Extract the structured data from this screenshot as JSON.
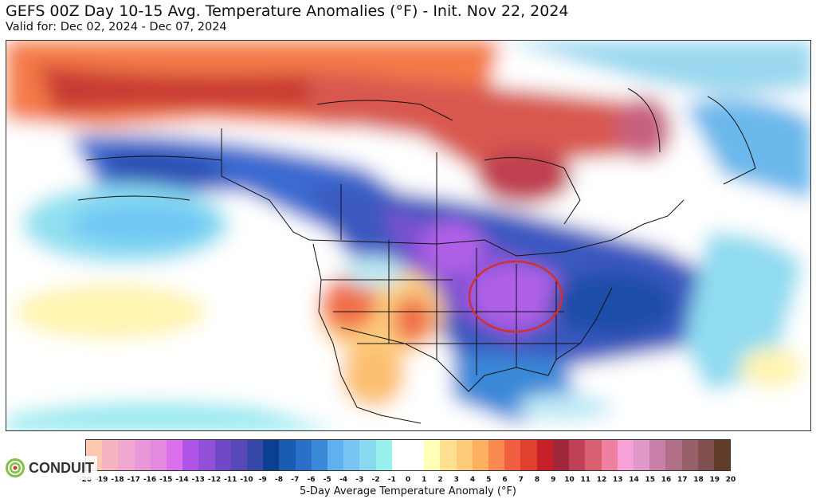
{
  "header": {
    "title": "GEFS 00Z Day 10-15 Avg. Temperature Anomalies (°F) - Init. Nov 22, 2024",
    "subtitle": "Valid for: Dec 02, 2024 - Dec 07, 2024"
  },
  "colorbar": {
    "label": "5-Day Average Temperature Anomaly (°F)",
    "ticks": [
      "-20",
      "-19",
      "-18",
      "-17",
      "-16",
      "-15",
      "-14",
      "-13",
      "-12",
      "-11",
      "-10",
      "-9",
      "-8",
      "-7",
      "-6",
      "-5",
      "-4",
      "-3",
      "-2",
      "-1",
      "0",
      "1",
      "2",
      "3",
      "4",
      "5",
      "6",
      "7",
      "8",
      "9",
      "10",
      "11",
      "12",
      "13",
      "14",
      "15",
      "16",
      "17",
      "18",
      "19",
      "20"
    ],
    "colors": [
      "#fcc8b0",
      "#f5b5c0",
      "#f0a8d0",
      "#e898d8",
      "#e488e0",
      "#dc70ec",
      "#b055e8",
      "#9050d8",
      "#7048c8",
      "#5848b8",
      "#3848a8",
      "#0c3f8f",
      "#1a5cb0",
      "#2a70c8",
      "#3a88d8",
      "#60b0f0",
      "#78c4f4",
      "#88d8f0",
      "#98f0ec",
      "#ffffff",
      "#ffffff",
      "#ffffb8",
      "#fee090",
      "#fdcc78",
      "#fcb060",
      "#f98a50",
      "#f06040",
      "#e04030",
      "#c82028",
      "#a02838",
      "#c04058",
      "#d86070",
      "#f080a0",
      "#f8a0d8",
      "#e098c8",
      "#c880a8",
      "#b07088",
      "#986068",
      "#805050",
      "#603c28"
    ]
  },
  "logo": {
    "text": "CONDUIT"
  },
  "annotation": {
    "shape": "red-ellipse",
    "color": "#d03030",
    "region": "Ohio Valley / Midwest"
  }
}
